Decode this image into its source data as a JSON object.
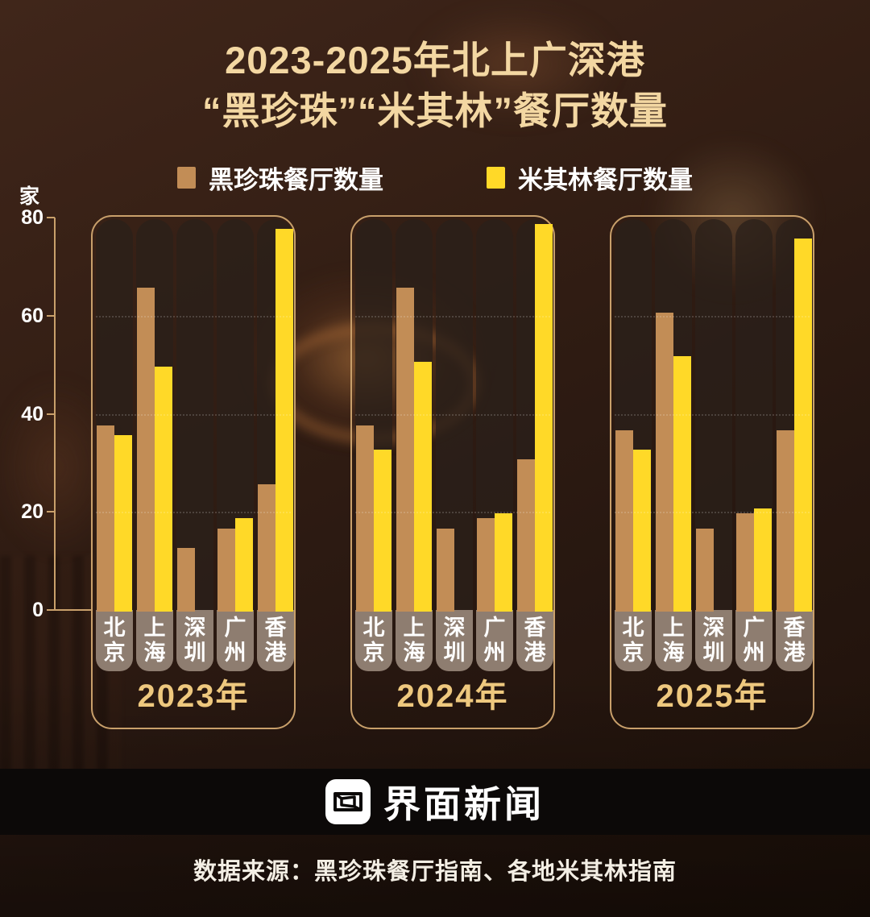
{
  "title": {
    "line1": "2023-2025年北上广深港",
    "line2": "“黑珍珠”“米其林”餐厅数量"
  },
  "legend": [
    {
      "label": "黑珍珠餐厅数量",
      "color": "#c28d56"
    },
    {
      "label": "米其林餐厅数量",
      "color": "#ffd928"
    }
  ],
  "chart_data": {
    "type": "bar",
    "title": "2023-2025年北上广深港“黑珍珠”“米其林”餐厅数量",
    "unit": "家",
    "ylim": [
      0,
      80
    ],
    "yticks": [
      0,
      20,
      40,
      60,
      80
    ],
    "grid": "dotted horizontal lines at 20/40/60 inside each year panel",
    "legend_position": "top",
    "categories": [
      "北京",
      "上海",
      "深圳",
      "广州",
      "香港"
    ],
    "groups": [
      {
        "year_label": "2023年",
        "series": [
          {
            "name": "黑珍珠餐厅数量",
            "color": "#c28d56",
            "values": [
              38,
              66,
              13,
              17,
              26
            ]
          },
          {
            "name": "米其林餐厅数量",
            "color": "#ffd928",
            "values": [
              36,
              50,
              null,
              19,
              78
            ]
          }
        ]
      },
      {
        "year_label": "2024年",
        "series": [
          {
            "name": "黑珍珠餐厅数量",
            "color": "#c28d56",
            "values": [
              38,
              66,
              17,
              19,
              31
            ]
          },
          {
            "name": "米其林餐厅数量",
            "color": "#ffd928",
            "values": [
              33,
              51,
              null,
              20,
              79
            ]
          }
        ]
      },
      {
        "year_label": "2025年",
        "series": [
          {
            "name": "黑珍珠餐厅数量",
            "color": "#c28d56",
            "values": [
              37,
              61,
              17,
              20,
              37
            ]
          },
          {
            "name": "米其林餐厅数量",
            "color": "#ffd928",
            "values": [
              33,
              52,
              null,
              21,
              76
            ]
          }
        ]
      }
    ]
  },
  "footer": {
    "logo_text": "界面新闻",
    "source": "数据来源：黑珍珠餐厅指南、各地米其林指南"
  }
}
